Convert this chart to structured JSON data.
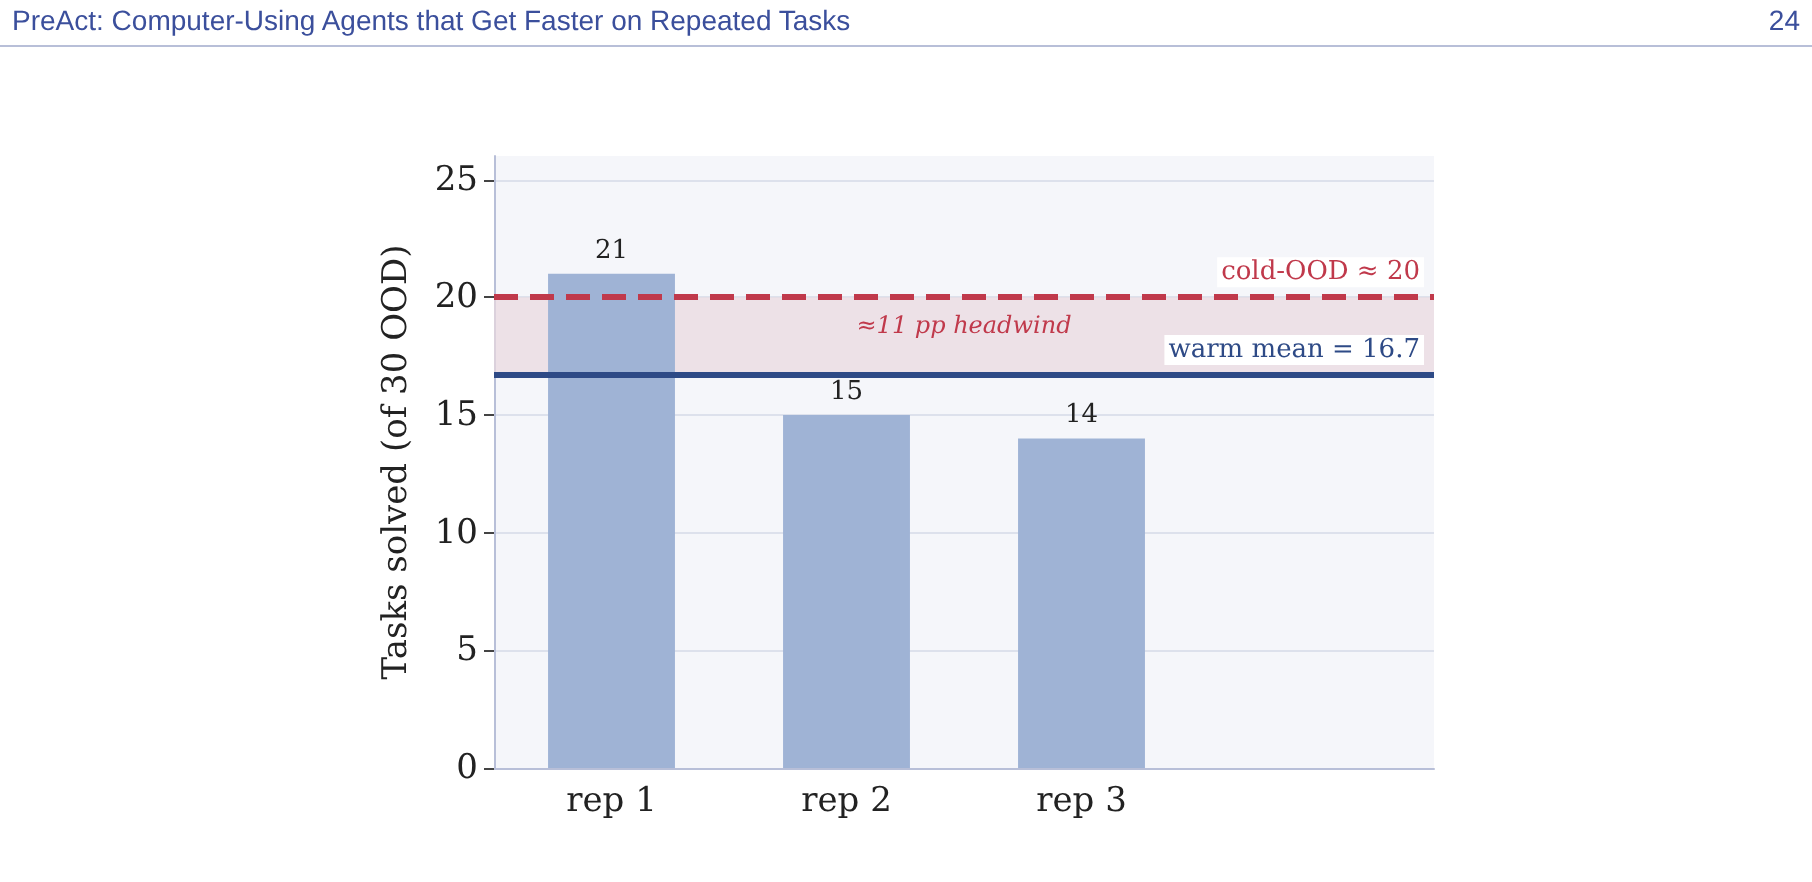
{
  "chart_data": {
    "type": "bar",
    "ylabel": "Tasks solved (of 30 OOD)",
    "annotations": [
      "PreAct: Computer-Using Agents that Get Faster on Repeated Tasks",
      "24"
    ],
    "categories": [
      "rep 1",
      "rep 2",
      "rep 3",
      null
    ],
    "values": [
      21,
      15,
      14,
      null
    ],
    "color": "#9fb3d5",
    "ylim": [
      0,
      26
    ],
    "yticks": [
      0,
      5,
      10,
      15,
      20,
      25
    ],
    "grid": "y",
    "data_labels": true,
    "ref_lines": [
      {
        "axis": "y",
        "value": 20,
        "label": "cold-OOD ≈ 20",
        "color": "#c0394b",
        "line_style": "dashed"
      },
      {
        "axis": "y",
        "value": 16.7,
        "label": "warm mean = 16.7",
        "color": "#2e4a86",
        "line_style": "solid"
      }
    ],
    "bands": [
      {
        "axis": "y",
        "from": 16.7,
        "to": 20,
        "label": "≈11 pp headwind",
        "color": "#ead8de"
      }
    ]
  }
}
